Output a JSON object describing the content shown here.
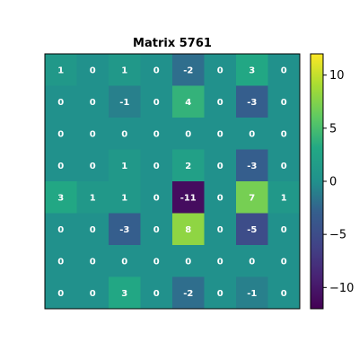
{
  "chart_data": {
    "type": "heatmap",
    "title": "Matrix 5761",
    "matrix": [
      [
        1,
        0,
        1,
        0,
        -2,
        0,
        3,
        0
      ],
      [
        0,
        0,
        -1,
        0,
        4,
        0,
        -3,
        0
      ],
      [
        0,
        0,
        0,
        0,
        0,
        0,
        0,
        0
      ],
      [
        0,
        0,
        1,
        0,
        2,
        0,
        -3,
        0
      ],
      [
        3,
        1,
        1,
        0,
        -11,
        0,
        7,
        1
      ],
      [
        0,
        0,
        -3,
        0,
        8,
        0,
        -5,
        0
      ],
      [
        0,
        0,
        0,
        0,
        0,
        0,
        0,
        0
      ],
      [
        0,
        0,
        3,
        0,
        -2,
        0,
        -1,
        0
      ]
    ],
    "colorbar": {
      "min": -12,
      "max": 12,
      "ticks": [
        10,
        5,
        0,
        -5,
        -10
      ],
      "tick_labels": [
        "10",
        "5",
        "0",
        "−5",
        "−10"
      ]
    },
    "colormap": "viridis",
    "grid": false
  }
}
